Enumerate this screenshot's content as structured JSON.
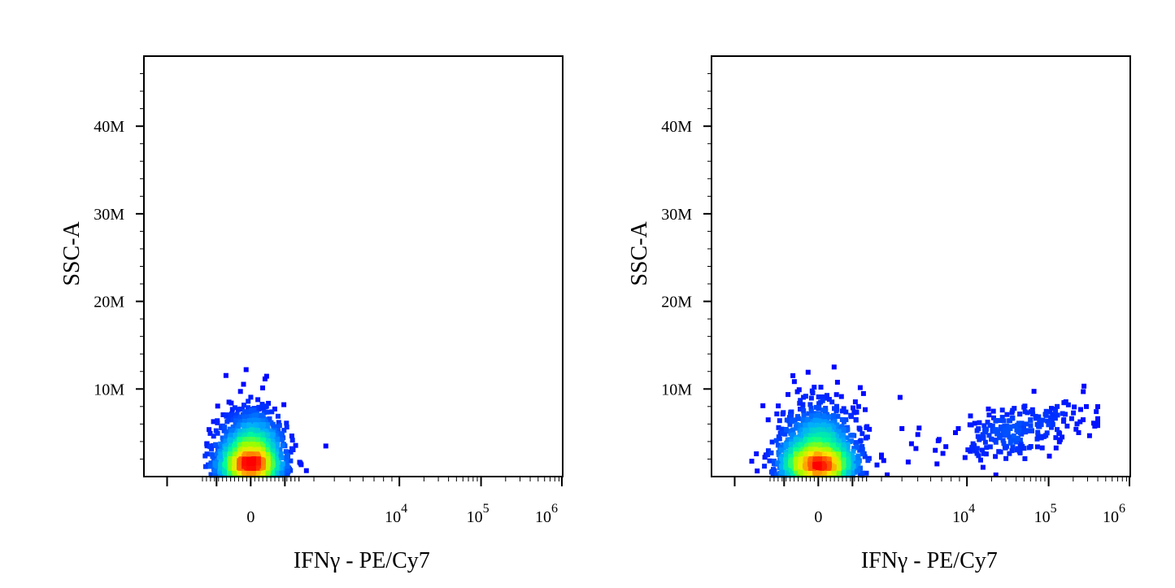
{
  "chart_data": [
    {
      "type": "scatter",
      "subtype": "flow-cytometry-density-dot-plot",
      "xlabel": "IFNγ - PE/Cy7",
      "ylabel": "SSC-A",
      "x_scale": "biexponential",
      "x_tick_labels": [
        {
          "value": 0,
          "base": "0",
          "exp": ""
        },
        {
          "value": 10000,
          "base": "10",
          "exp": "4"
        },
        {
          "value": 100000,
          "base": "10",
          "exp": "5"
        },
        {
          "value": 1000000,
          "base": "10",
          "exp": "6"
        }
      ],
      "y_tick_labels": [
        "10M",
        "20M",
        "30M",
        "40M"
      ],
      "y_ticks": [
        10000000,
        20000000,
        30000000,
        40000000
      ],
      "ylim": [
        0,
        48000000
      ],
      "color_scale": [
        "#0000ff",
        "#00c8ff",
        "#00ff80",
        "#ffff00",
        "#ff0000"
      ],
      "populations": [
        {
          "description": "IFNγ negative",
          "x_center": 0,
          "x_range": [
            -2000,
            2000
          ],
          "y_center": 1000000,
          "y_range": [
            0,
            12500000
          ],
          "fraction": 1.0
        }
      ]
    },
    {
      "type": "scatter",
      "subtype": "flow-cytometry-density-dot-plot",
      "xlabel": "IFNγ - PE/Cy7",
      "ylabel": "SSC-A",
      "x_scale": "biexponential",
      "x_tick_labels": [
        {
          "value": 0,
          "base": "0",
          "exp": ""
        },
        {
          "value": 10000,
          "base": "10",
          "exp": "4"
        },
        {
          "value": 100000,
          "base": "10",
          "exp": "5"
        },
        {
          "value": 1000000,
          "base": "10",
          "exp": "6"
        }
      ],
      "y_tick_labels": [
        "10M",
        "20M",
        "30M",
        "40M"
      ],
      "y_ticks": [
        10000000,
        20000000,
        30000000,
        40000000
      ],
      "ylim": [
        0,
        48000000
      ],
      "color_scale": [
        "#0000ff",
        "#00c8ff",
        "#00ff80",
        "#ffff00",
        "#ff0000"
      ],
      "populations": [
        {
          "description": "IFNγ negative",
          "x_center": 0,
          "x_range": [
            -2500,
            2500
          ],
          "y_center": 1000000,
          "y_range": [
            0,
            14000000
          ],
          "fraction": 0.88
        },
        {
          "description": "IFNγ positive",
          "x_center": 40000,
          "x_range": [
            3000,
            400000
          ],
          "y_center": 5500000,
          "y_range": [
            1000000,
            11000000
          ],
          "fraction": 0.12
        }
      ]
    }
  ]
}
